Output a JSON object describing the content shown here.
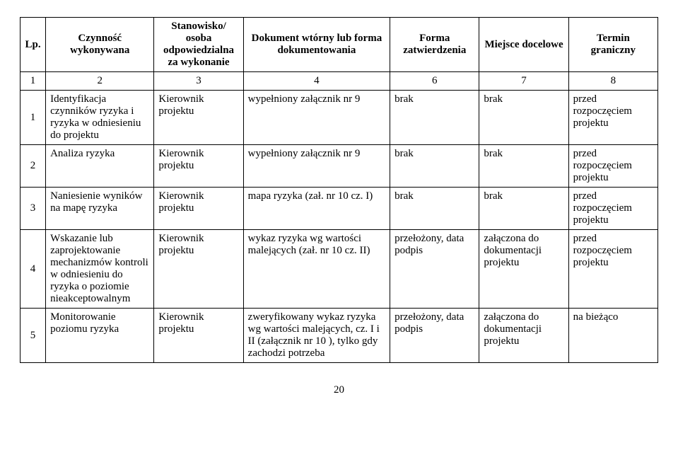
{
  "headers": {
    "lp": "Lp.",
    "activity": "Czynność wykonywana",
    "responsible": "Stanowisko/ osoba odpowiedzialna za wykonanie",
    "document": "Dokument wtórny lub forma dokumentowania",
    "approval": "Forma zatwierdzenia",
    "destination": "Miejsce docelowe",
    "deadline": "Termin graniczny"
  },
  "numrow": {
    "c1": "1",
    "c2": "2",
    "c3": "3",
    "c4": "4",
    "c5": "6",
    "c6": "7",
    "c7": "8"
  },
  "rows": [
    {
      "lp": "1",
      "activity": "Identyfikacja czynników ryzyka i ryzyka w odniesieniu do projektu",
      "responsible": "Kierownik projektu",
      "document": "wypełniony załącznik nr 9",
      "approval": "brak",
      "destination": "brak",
      "deadline": "przed rozpoczęciem projektu"
    },
    {
      "lp": "2",
      "activity": "Analiza ryzyka",
      "responsible": "Kierownik projektu",
      "document": "wypełniony załącznik nr 9",
      "approval": "brak",
      "destination": "brak",
      "deadline": "przed rozpoczęciem projektu"
    },
    {
      "lp": "3",
      "activity": "Naniesienie wyników na mapę ryzyka",
      "responsible": "Kierownik projektu",
      "document": "mapa ryzyka (zał. nr 10 cz. I)",
      "approval": "brak",
      "destination": "brak",
      "deadline": "przed rozpoczęciem projektu"
    },
    {
      "lp": "4",
      "activity": "Wskazanie lub zaprojektowanie mechanizmów kontroli w odniesieniu do ryzyka o poziomie nieakceptowalnym",
      "responsible": "Kierownik projektu",
      "document": "wykaz ryzyka wg wartości malejących (zał. nr 10 cz. II)",
      "approval": "przełożony, data podpis",
      "destination": "załączona do dokumentacji projektu",
      "deadline": "przed rozpoczęciem projektu"
    },
    {
      "lp": "5",
      "activity": "Monitorowanie poziomu ryzyka",
      "responsible": "Kierownik projektu",
      "document": "zweryfikowany wykaz ryzyka wg wartości malejących, cz. I i II (załącznik nr 10 ), tylko gdy zachodzi potrzeba",
      "approval": "przełożony, data podpis",
      "destination": "załączona do dokumentacji projektu",
      "deadline": "na bieżąco"
    }
  ],
  "pagenum": "20"
}
